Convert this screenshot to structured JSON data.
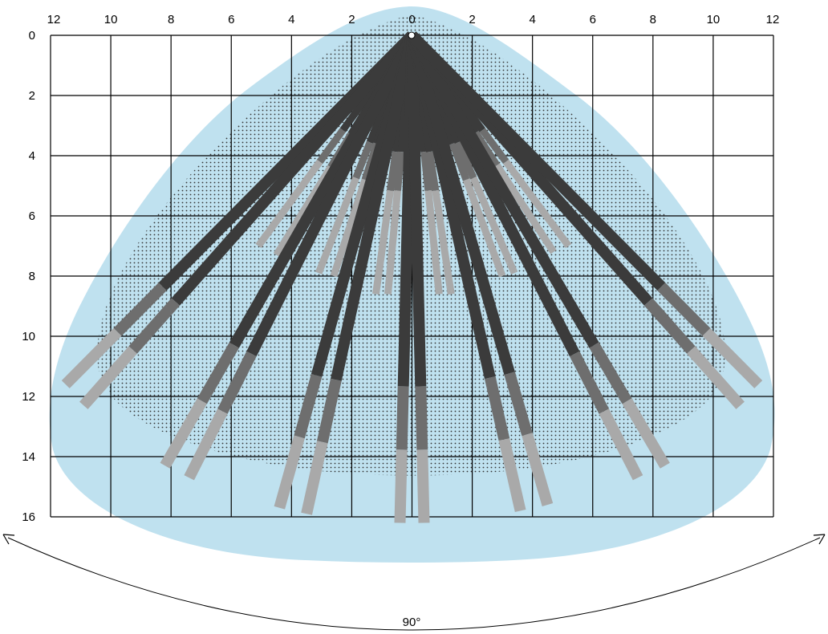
{
  "chart_data": {
    "type": "diagram",
    "top_axis": {
      "ticks": [
        {
          "value": -12,
          "label": "12"
        },
        {
          "value": -10,
          "label": "10"
        },
        {
          "value": -8,
          "label": "8"
        },
        {
          "value": -6,
          "label": "6"
        },
        {
          "value": -4,
          "label": "4"
        },
        {
          "value": -2,
          "label": "2"
        },
        {
          "value": 0,
          "label": "0"
        },
        {
          "value": 2,
          "label": "2"
        },
        {
          "value": 4,
          "label": "4"
        },
        {
          "value": 6,
          "label": "6"
        },
        {
          "value": 8,
          "label": "8"
        },
        {
          "value": 10,
          "label": "10"
        },
        {
          "value": 12,
          "label": "12"
        }
      ],
      "range": [
        -12,
        12
      ]
    },
    "left_axis": {
      "ticks": [
        {
          "value": 0,
          "label": "0"
        },
        {
          "value": 2,
          "label": "2"
        },
        {
          "value": 4,
          "label": "4"
        },
        {
          "value": 6,
          "label": "6"
        },
        {
          "value": 8,
          "label": "8"
        },
        {
          "value": 10,
          "label": "10"
        },
        {
          "value": 12,
          "label": "12"
        },
        {
          "value": 14,
          "label": "14"
        },
        {
          "value": 16,
          "label": "16"
        }
      ],
      "range": [
        0,
        16
      ]
    },
    "grid": true,
    "grid_step": 2,
    "origin": {
      "x": 0,
      "y": 0
    },
    "coverage_angle_label": "90°",
    "colors": {
      "coverage_area": "#bfe1ef",
      "dotted_zone": "#333333",
      "beam_dark": "#3b3b3b",
      "beam_mid": "#6e6e6e",
      "beam_light": "#a9a9a9",
      "grid_line": "#000000"
    },
    "beams": [
      {
        "group": "long",
        "end": [
          -11.5,
          11.6
        ],
        "segments": [
          0.72,
          0.85,
          1.0
        ]
      },
      {
        "group": "long",
        "end": [
          -10.9,
          12.3
        ],
        "segments": [
          0.72,
          0.85,
          1.0
        ]
      },
      {
        "group": "long",
        "end": [
          -8.2,
          14.3
        ],
        "segments": [
          0.72,
          0.85,
          1.0
        ]
      },
      {
        "group": "long",
        "end": [
          -7.4,
          14.7
        ],
        "segments": [
          0.72,
          0.85,
          1.0
        ]
      },
      {
        "group": "long",
        "end": [
          -4.4,
          15.7
        ],
        "segments": [
          0.72,
          0.85,
          1.0
        ]
      },
      {
        "group": "long",
        "end": [
          -3.5,
          15.9
        ],
        "segments": [
          0.72,
          0.85,
          1.0
        ]
      },
      {
        "group": "long",
        "end": [
          -0.4,
          16.2
        ],
        "segments": [
          0.72,
          0.85,
          1.0
        ]
      },
      {
        "group": "long",
        "end": [
          0.4,
          16.2
        ],
        "segments": [
          0.72,
          0.85,
          1.0
        ]
      },
      {
        "group": "long",
        "end": [
          3.6,
          15.8
        ],
        "segments": [
          0.72,
          0.85,
          1.0
        ]
      },
      {
        "group": "long",
        "end": [
          4.5,
          15.6
        ],
        "segments": [
          0.72,
          0.85,
          1.0
        ]
      },
      {
        "group": "long",
        "end": [
          7.5,
          14.7
        ],
        "segments": [
          0.72,
          0.85,
          1.0
        ]
      },
      {
        "group": "long",
        "end": [
          8.4,
          14.3
        ],
        "segments": [
          0.72,
          0.85,
          1.0
        ]
      },
      {
        "group": "long",
        "end": [
          10.9,
          12.3
        ],
        "segments": [
          0.72,
          0.85,
          1.0
        ]
      },
      {
        "group": "long",
        "end": [
          11.5,
          11.6
        ],
        "segments": [
          0.72,
          0.85,
          1.0
        ]
      },
      {
        "group": "short",
        "end": [
          -5.1,
          7.0
        ],
        "segments": [
          0.45,
          0.6,
          1.0
        ]
      },
      {
        "group": "short",
        "end": [
          -4.5,
          7.3
        ],
        "segments": [
          0.45,
          0.6,
          1.0
        ]
      },
      {
        "group": "short",
        "end": [
          -3.1,
          7.9
        ],
        "segments": [
          0.45,
          0.6,
          1.0
        ]
      },
      {
        "group": "short",
        "end": [
          -2.6,
          8.0
        ],
        "segments": [
          0.45,
          0.6,
          1.0
        ]
      },
      {
        "group": "short",
        "end": [
          -1.2,
          8.6
        ],
        "segments": [
          0.45,
          0.6,
          1.0
        ]
      },
      {
        "group": "short",
        "end": [
          -0.8,
          8.6
        ],
        "segments": [
          0.45,
          0.6,
          1.0
        ]
      },
      {
        "group": "short",
        "end": [
          0.9,
          8.6
        ],
        "segments": [
          0.45,
          0.6,
          1.0
        ]
      },
      {
        "group": "short",
        "end": [
          1.3,
          8.6
        ],
        "segments": [
          0.45,
          0.6,
          1.0
        ]
      },
      {
        "group": "short",
        "end": [
          3.0,
          8.0
        ],
        "segments": [
          0.45,
          0.6,
          1.0
        ]
      },
      {
        "group": "short",
        "end": [
          3.4,
          7.9
        ],
        "segments": [
          0.45,
          0.6,
          1.0
        ]
      },
      {
        "group": "short",
        "end": [
          4.7,
          7.2
        ],
        "segments": [
          0.45,
          0.6,
          1.0
        ]
      },
      {
        "group": "short",
        "end": [
          5.2,
          7.0
        ],
        "segments": [
          0.45,
          0.6,
          1.0
        ]
      }
    ]
  }
}
